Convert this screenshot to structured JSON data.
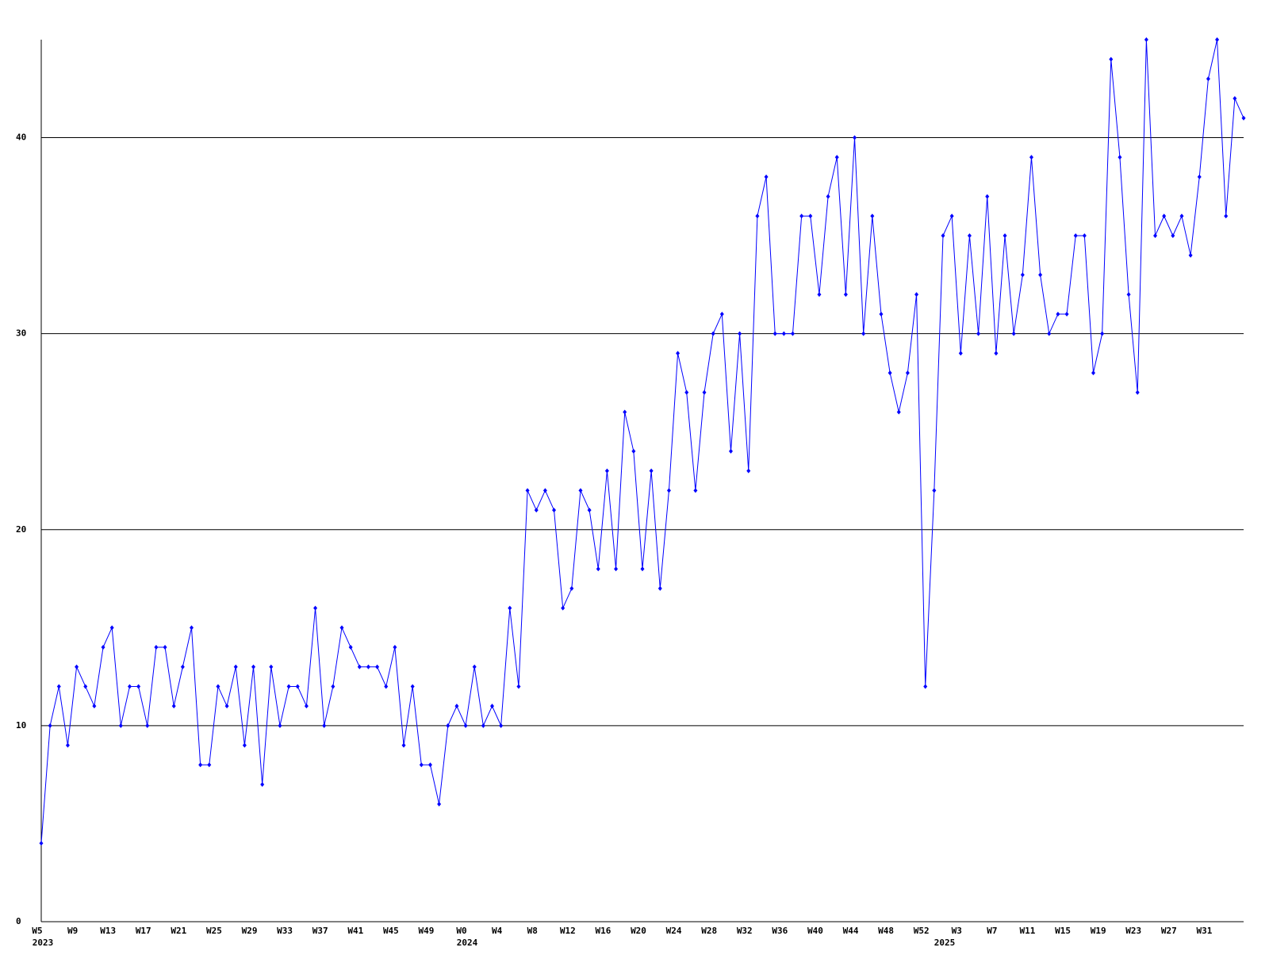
{
  "chart_data": {
    "type": "line",
    "categories": [
      "W5",
      null,
      null,
      null,
      "W9",
      null,
      null,
      null,
      "W13",
      null,
      null,
      null,
      "W17",
      null,
      null,
      null,
      "W21",
      null,
      null,
      null,
      "W25",
      null,
      null,
      null,
      "W29",
      null,
      null,
      null,
      "W33",
      null,
      null,
      null,
      "W37",
      null,
      null,
      null,
      "W41",
      null,
      null,
      null,
      "W45",
      null,
      null,
      null,
      "W49",
      null,
      null,
      null,
      "W0",
      null,
      null,
      null,
      "W4",
      null,
      null,
      null,
      "W8",
      null,
      null,
      null,
      "W12",
      null,
      null,
      null,
      "W16",
      null,
      null,
      null,
      "W20",
      null,
      null,
      null,
      "W24",
      null,
      null,
      null,
      "W28",
      null,
      null,
      null,
      "W32",
      null,
      null,
      null,
      "W36",
      null,
      null,
      null,
      "W40",
      null,
      null,
      null,
      "W44",
      null,
      null,
      null,
      "W48",
      null,
      null,
      null,
      "W52",
      null,
      null,
      null,
      "W3",
      null,
      null,
      null,
      "W7",
      null,
      null,
      null,
      "W11",
      null,
      null,
      null,
      "W15",
      null,
      null,
      null,
      "W19",
      null,
      null,
      null,
      "W23",
      null,
      null,
      null,
      "W27",
      null,
      null,
      null,
      "W31",
      null,
      null,
      null,
      null
    ],
    "year_labels": [
      "2023",
      null,
      null,
      null,
      null,
      null,
      null,
      null,
      null,
      null,
      null,
      null,
      null,
      null,
      null,
      null,
      null,
      null,
      null,
      null,
      null,
      null,
      null,
      null,
      null,
      null,
      null,
      null,
      null,
      null,
      null,
      null,
      null,
      null,
      null,
      null,
      null,
      null,
      null,
      null,
      null,
      null,
      null,
      null,
      null,
      null,
      null,
      null,
      "2024",
      null,
      null,
      null,
      null,
      null,
      null,
      null,
      null,
      null,
      null,
      null,
      null,
      null,
      null,
      null,
      null,
      null,
      null,
      null,
      null,
      null,
      null,
      null,
      null,
      null,
      null,
      null,
      null,
      null,
      null,
      null,
      null,
      null,
      null,
      null,
      null,
      null,
      null,
      null,
      null,
      null,
      null,
      null,
      null,
      null,
      null,
      null,
      null,
      null,
      null,
      null,
      null,
      null,
      "2025",
      null,
      null,
      null,
      null,
      null,
      null,
      null,
      null,
      null,
      null,
      null,
      null,
      null,
      null,
      null,
      null,
      null,
      null,
      null,
      null,
      null,
      null,
      null,
      null,
      null,
      null,
      null,
      null,
      null,
      null,
      null,
      null,
      null,
      null
    ],
    "values": [
      4,
      10,
      12,
      9,
      13,
      12,
      11,
      14,
      15,
      10,
      12,
      12,
      10,
      14,
      14,
      11,
      13,
      15,
      8,
      8,
      12,
      11,
      13,
      9,
      13,
      7,
      13,
      10,
      12,
      12,
      11,
      16,
      10,
      12,
      15,
      14,
      13,
      13,
      13,
      12,
      14,
      9,
      12,
      8,
      8,
      6,
      10,
      11,
      10,
      13,
      10,
      11,
      10,
      16,
      12,
      22,
      21,
      22,
      21,
      16,
      17,
      22,
      21,
      18,
      23,
      18,
      26,
      24,
      18,
      23,
      17,
      22,
      29,
      27,
      22,
      27,
      30,
      31,
      24,
      30,
      23,
      36,
      38,
      30,
      30,
      30,
      36,
      36,
      32,
      37,
      39,
      32,
      40,
      30,
      36,
      31,
      28,
      26,
      28,
      32,
      12,
      22,
      35,
      36,
      29,
      35,
      30,
      37,
      29,
      35,
      30,
      33,
      39,
      33,
      30,
      31,
      31,
      35,
      35,
      28,
      30,
      44,
      39,
      32,
      27,
      45,
      35,
      36,
      35,
      36,
      34,
      38,
      43,
      45,
      36,
      42,
      41
    ],
    "color": "#0000ff",
    "ylim": [
      0,
      45
    ],
    "yticks": [
      0,
      10,
      20,
      30,
      40
    ],
    "grid": true
  }
}
